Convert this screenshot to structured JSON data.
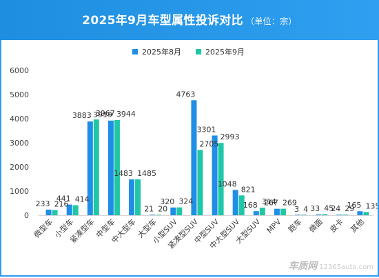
{
  "header": {
    "title": "2025年9月车型属性投诉对比",
    "unit": "（单位：宗）"
  },
  "watermark": {
    "logo": "车质网",
    "site": "12365auto.com"
  },
  "colors": {
    "header_bg": "#2b9af0",
    "series_aug": "#1e8ee6",
    "series_sep": "#1fc7a7"
  },
  "chart_data": {
    "type": "bar",
    "title": "2025年9月车型属性投诉对比",
    "xlabel": "",
    "ylabel": "",
    "ylim": [
      0,
      6000
    ],
    "yticks": [
      0,
      1000,
      2000,
      3000,
      4000,
      5000,
      6000
    ],
    "legend_position": "top-center",
    "grid": false,
    "categories": [
      "微型车",
      "小型车",
      "紧凑型车",
      "中型车",
      "中大型车",
      "大型车",
      "小型SUV",
      "紧凑型SUV",
      "中型SUV",
      "中大型SUV",
      "大型SUV",
      "MPV",
      "跑车",
      "微面",
      "皮卡",
      "其他"
    ],
    "series": [
      {
        "name": "2025年8月",
        "color": "#1e8ee6",
        "values": [
          233,
          441,
          3883,
          3919,
          1483,
          21,
          320,
          4763,
          3301,
          1048,
          168,
          267,
          3,
          33,
          24,
          165
        ]
      },
      {
        "name": "2025年9月",
        "color": "#1fc7a7",
        "values": [
          216,
          414,
          3967,
          3944,
          1485,
          20,
          324,
          2705,
          2993,
          821,
          314,
          269,
          4,
          45,
          29,
          135
        ]
      }
    ]
  }
}
